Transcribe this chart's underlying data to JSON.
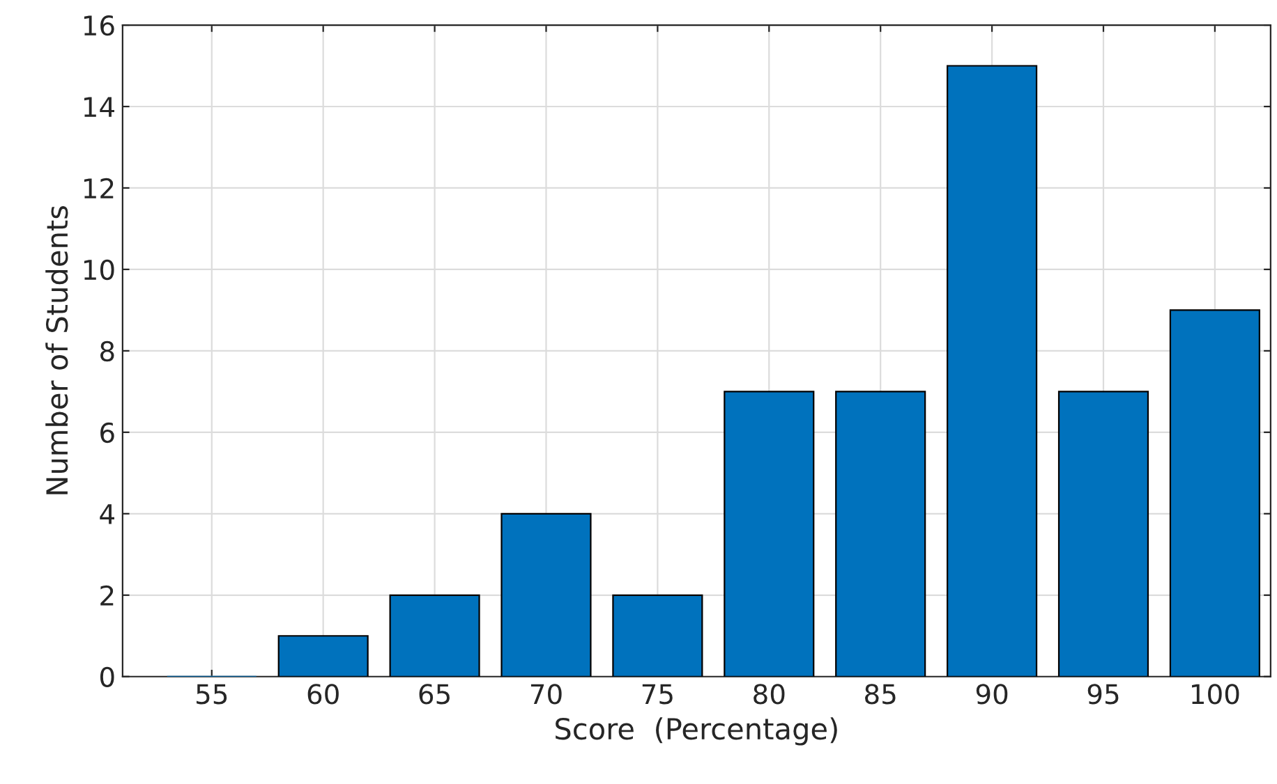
{
  "chart_data": {
    "type": "bar",
    "xlabel": "Score  (Percentage)",
    "ylabel": "Number of Students",
    "categories": [
      "55",
      "60",
      "65",
      "70",
      "75",
      "80",
      "85",
      "90",
      "95",
      "100"
    ],
    "values": [
      0,
      1,
      2,
      4,
      2,
      7,
      7,
      15,
      7,
      9
    ],
    "color": "#0072bd",
    "ylim": [
      0,
      16
    ],
    "yticks": [
      0,
      2,
      4,
      6,
      8,
      10,
      12,
      14,
      16
    ],
    "grid": true
  }
}
